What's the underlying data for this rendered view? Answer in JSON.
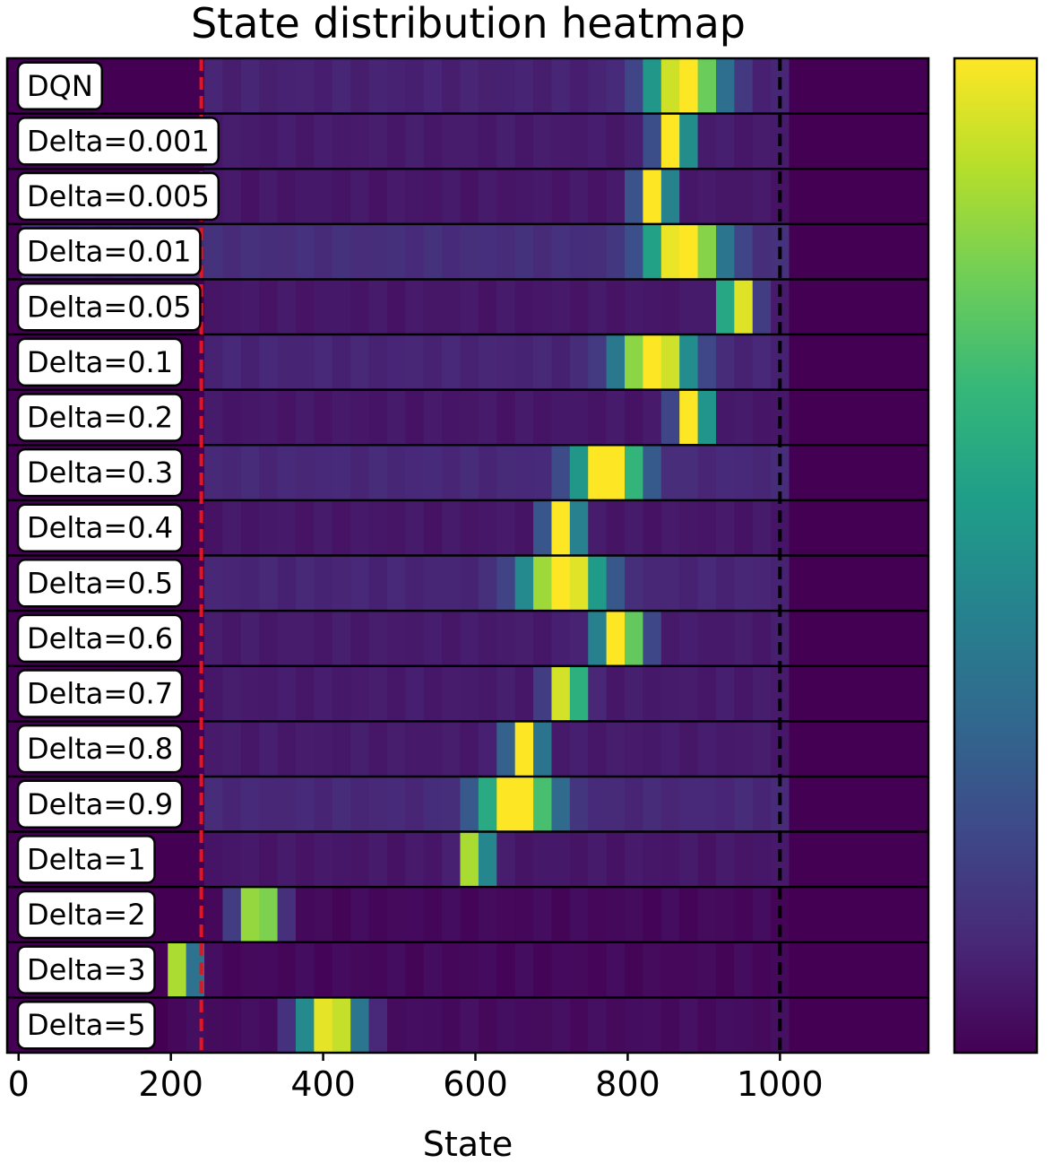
{
  "chart_data": {
    "type": "heatmap",
    "title": "State distribution heatmap",
    "xlabel": "State",
    "ylabel": "",
    "xlim": [
      -15,
      1195
    ],
    "xticks": [
      0,
      200,
      400,
      600,
      800,
      1000
    ],
    "bin_width": 24,
    "colormap": "viridis",
    "colorbar_ticks": false,
    "reference_lines": [
      {
        "x": 240,
        "color": "#e8141b",
        "style": "dashed"
      },
      {
        "x": 1000,
        "color": "#000000",
        "style": "dashed"
      }
    ],
    "rows": [
      {
        "label": "DQN",
        "background": 0.08,
        "peak": 875,
        "peak_value": 1.0,
        "spread": 55,
        "ramp_start": 230
      },
      {
        "label": "Delta=0.001",
        "background": 0.06,
        "peak": 860,
        "peak_value": 1.0,
        "spread": 25,
        "ramp_start": 230
      },
      {
        "label": "Delta=0.005",
        "background": 0.05,
        "peak": 835,
        "peak_value": 1.0,
        "spread": 25,
        "ramp_start": 230
      },
      {
        "label": "Delta=0.01",
        "background": 0.12,
        "peak": 875,
        "peak_value": 1.0,
        "spread": 55,
        "ramp_start": 0
      },
      {
        "label": "Delta=0.05",
        "background": 0.05,
        "peak": 945,
        "peak_value": 1.0,
        "spread": 25,
        "ramp_start": 230
      },
      {
        "label": "Delta=0.1",
        "background": 0.09,
        "peak": 835,
        "peak_value": 1.0,
        "spread": 55,
        "ramp_start": 230
      },
      {
        "label": "Delta=0.2",
        "background": 0.05,
        "peak": 885,
        "peak_value": 1.0,
        "spread": 25,
        "ramp_start": 230
      },
      {
        "label": "Delta=0.3",
        "background": 0.1,
        "peak": 775,
        "peak_value": 1.0,
        "spread": 50,
        "ramp_start": 230
      },
      {
        "label": "Delta=0.4",
        "background": 0.05,
        "peak": 715,
        "peak_value": 1.0,
        "spread": 25,
        "ramp_start": 230
      },
      {
        "label": "Delta=0.5",
        "background": 0.09,
        "peak": 715,
        "peak_value": 1.0,
        "spread": 60,
        "ramp_start": 230
      },
      {
        "label": "Delta=0.6",
        "background": 0.06,
        "peak": 790,
        "peak_value": 1.0,
        "spread": 35,
        "ramp_start": 230
      },
      {
        "label": "Delta=0.7",
        "background": 0.06,
        "peak": 720,
        "peak_value": 1.0,
        "spread": 25,
        "ramp_start": 230
      },
      {
        "label": "Delta=0.8",
        "background": 0.06,
        "peak": 665,
        "peak_value": 1.0,
        "spread": 25,
        "ramp_start": 230
      },
      {
        "label": "Delta=0.9",
        "background": 0.1,
        "peak": 655,
        "peak_value": 1.0,
        "spread": 55,
        "ramp_start": 230
      },
      {
        "label": "Delta=1",
        "background": 0.05,
        "peak": 600,
        "peak_value": 1.0,
        "spread": 20,
        "ramp_start": 230
      },
      {
        "label": "Delta=2",
        "background": 0.01,
        "peak": 315,
        "peak_value": 1.0,
        "spread": 30,
        "ramp_start": 230
      },
      {
        "label": "Delta=3",
        "background": 0.01,
        "peak": 215,
        "peak_value": 1.0,
        "spread": 20,
        "ramp_start": 180
      },
      {
        "label": "Delta=5",
        "background": 0.02,
        "peak": 410,
        "peak_value": 1.0,
        "spread": 45,
        "ramp_start": 180
      }
    ]
  }
}
